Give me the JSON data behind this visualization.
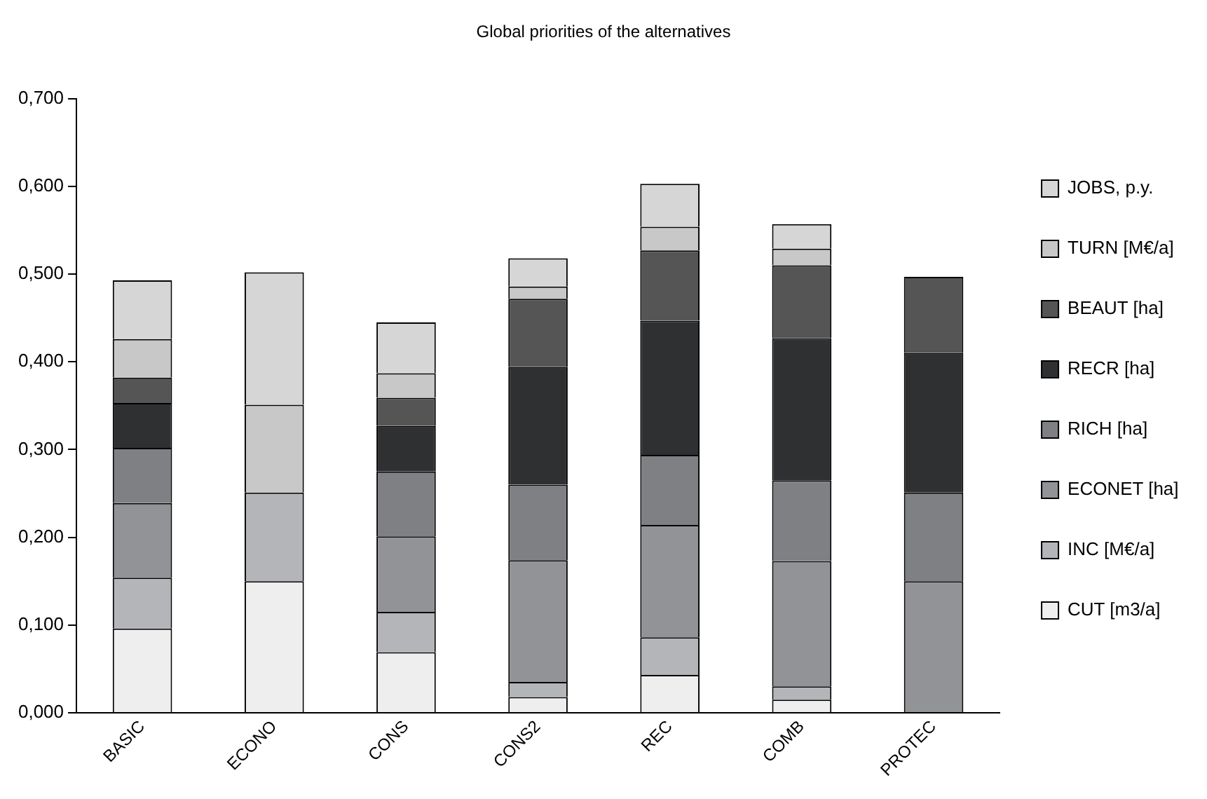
{
  "chart_data": {
    "type": "bar",
    "title": "Global priorities of the alternatives",
    "stacked": true,
    "legend": "right",
    "grid": false,
    "categories": [
      "BASIC",
      "ECONO",
      "CONS",
      "CONS2",
      "REC",
      "COMB",
      "PROTEC"
    ],
    "ylim": [
      0,
      0.7
    ],
    "yticks": [
      {
        "value": 0,
        "label": "0,000"
      },
      {
        "value": 0.1,
        "label": "0,100"
      },
      {
        "value": 0.2,
        "label": "0,200"
      },
      {
        "value": 0.3,
        "label": "0,300"
      },
      {
        "value": 0.4,
        "label": "0,400"
      },
      {
        "value": 0.5,
        "label": "0,500"
      },
      {
        "value": 0.6,
        "label": "0,600"
      },
      {
        "value": 0.7,
        "label": "0,700"
      }
    ],
    "series": [
      {
        "name": "CUT [m3/a]",
        "color": "#eeeeee",
        "values": [
          0.096,
          0.15,
          0.069,
          0.018,
          0.043,
          0.015,
          0
        ]
      },
      {
        "name": "INC [M€/a]",
        "color": "#b4b5b8",
        "values": [
          0.058,
          0.101,
          0.046,
          0.017,
          0.043,
          0.015,
          0
        ]
      },
      {
        "name": "ECONET [ha]",
        "color": "#929396",
        "values": [
          0.085,
          0,
          0.086,
          0.139,
          0.128,
          0.143,
          0.15
        ]
      },
      {
        "name": "RICH [ha]",
        "color": "#7f8084",
        "values": [
          0.063,
          0,
          0.074,
          0.086,
          0.08,
          0.092,
          0.101
        ]
      },
      {
        "name": "RECR [ha]",
        "color": "#2f3032",
        "values": [
          0.051,
          0,
          0.052,
          0.134,
          0.153,
          0.162,
          0.159
        ]
      },
      {
        "name": "BEAUT [ha]",
        "color": "#555555",
        "values": [
          0.029,
          0,
          0.032,
          0.078,
          0.08,
          0.083,
          0.087
        ]
      },
      {
        "name": "TURN [M€/a]",
        "color": "#c8c8c8",
        "values": [
          0.044,
          0.1,
          0.028,
          0.014,
          0.027,
          0.019,
          0
        ]
      },
      {
        "name": "JOBS, p.y.",
        "color": "#d6d6d6",
        "values": [
          0.067,
          0.151,
          0.058,
          0.032,
          0.049,
          0.028,
          0
        ]
      }
    ]
  }
}
